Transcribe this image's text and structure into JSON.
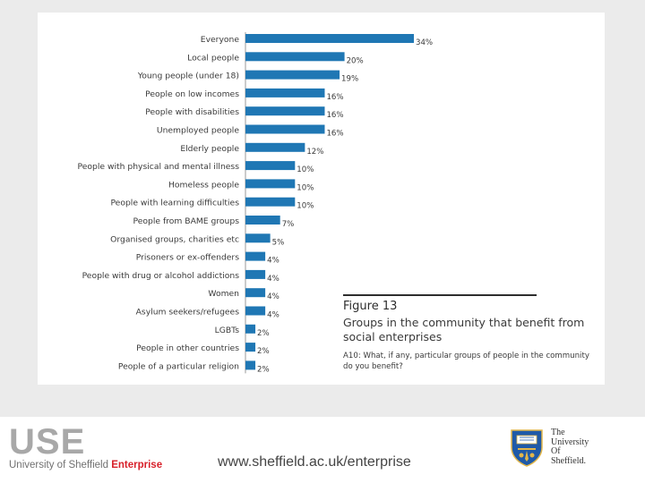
{
  "chart_data": {
    "type": "bar",
    "orientation": "horizontal",
    "categories": [
      "Everyone",
      "Local people",
      "Young people (under 18)",
      "People on low incomes",
      "People with disabilities",
      "Unemployed people",
      "Elderly people",
      "People with physical and mental illness",
      "Homeless people",
      "People with learning difficulties",
      "People from BAME groups",
      "Organised groups, charities etc",
      "Prisoners or ex-offenders",
      "People with drug or alcohol addictions",
      "Women",
      "Asylum seekers/refugees",
      "LGBTs",
      "People in other countries",
      "People of a particular religion"
    ],
    "values": [
      34,
      20,
      19,
      16,
      16,
      16,
      12,
      10,
      10,
      10,
      7,
      5,
      4,
      4,
      4,
      4,
      2,
      2,
      2
    ],
    "value_labels": [
      "34%",
      "20%",
      "19%",
      "16%",
      "16%",
      "16%",
      "12%",
      "10%",
      "10%",
      "10%",
      "7%",
      "5%",
      "4%",
      "4%",
      "4%",
      "4%",
      "2%",
      "2%",
      "2%"
    ],
    "xlim": [
      0,
      34
    ],
    "bar_color": "#1f77b4",
    "figure_number": "Figure 13",
    "title": "Groups in the community that benefit from social enterprises",
    "question": "A10: What, if any, particular groups of people in the community do you benefit?"
  },
  "footer": {
    "logo_text": "USE",
    "subtitle_prefix": "University of Sheffield ",
    "subtitle_highlight": "Enterprise",
    "url": "www.sheffield.ac.uk/enterprise",
    "university_name": [
      "The",
      "University",
      "Of",
      "Sheffield."
    ]
  },
  "colors": {
    "accent_red": "#d8202a",
    "logo_grey": "#a8a8a8",
    "crest_blue": "#1f5aa8",
    "crest_gold": "#e2b64a"
  }
}
